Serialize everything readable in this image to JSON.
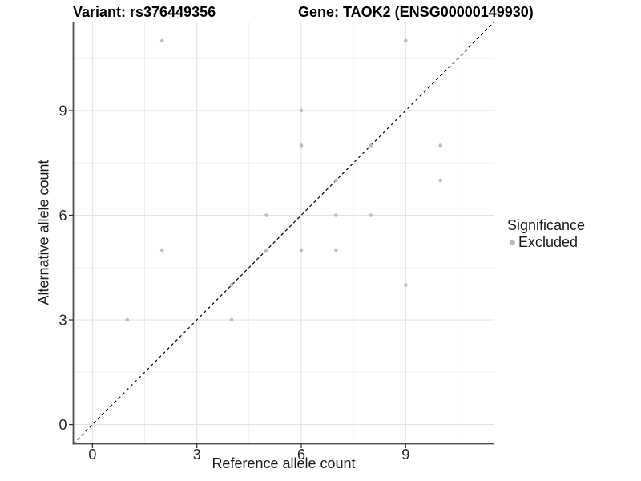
{
  "titles": {
    "variant": "Variant: rs376449356",
    "gene": "Gene: TAOK2 (ENSG00000149930)"
  },
  "legend": {
    "title": "Significance",
    "items": [
      {
        "label": "Excluded",
        "color": "#bdbdbd",
        "icon": "circle"
      }
    ]
  },
  "colors": {
    "point": "#bdbdbd",
    "grid_major": "#e3e3e3",
    "grid_minor": "#f0f0f0",
    "axis_line": "#4d4d4d",
    "tick_mark": "#333333",
    "tick_text": "#262626",
    "identity_line": "#000000",
    "background": "#ffffff"
  },
  "chart_data": {
    "type": "scatter",
    "title_left": "Variant: rs376449356",
    "title_right": "Gene: TAOK2 (ENSG00000149930)",
    "xlabel": "Reference allele count",
    "ylabel": "Alternative allele count",
    "xlim": [
      -0.55,
      11.55
    ],
    "ylim": [
      -0.55,
      11.55
    ],
    "x_ticks": [
      0,
      3,
      6,
      9
    ],
    "y_ticks": [
      0,
      3,
      6,
      9
    ],
    "x_minor_gridlines": [
      1.5,
      4.5,
      7.5,
      10.5
    ],
    "y_minor_gridlines": [
      1.5,
      4.5,
      7.5,
      10.5
    ],
    "grid": true,
    "legend_position": "right",
    "reference_line": {
      "type": "identity",
      "slope": 1,
      "intercept": 0,
      "style": "dashed",
      "color": "#000000"
    },
    "series": [
      {
        "name": "Excluded",
        "color": "#bdbdbd",
        "marker": "circle",
        "points": [
          [
            1,
            3
          ],
          [
            2,
            5
          ],
          [
            2,
            11
          ],
          [
            4,
            3
          ],
          [
            4,
            4
          ],
          [
            5,
            5
          ],
          [
            5,
            6
          ],
          [
            6,
            5
          ],
          [
            6,
            8
          ],
          [
            6,
            9
          ],
          [
            7,
            5
          ],
          [
            7,
            6
          ],
          [
            7,
            7
          ],
          [
            8,
            6
          ],
          [
            8,
            8
          ],
          [
            9,
            4
          ],
          [
            9,
            11
          ],
          [
            10,
            7
          ],
          [
            10,
            8
          ]
        ]
      }
    ]
  }
}
